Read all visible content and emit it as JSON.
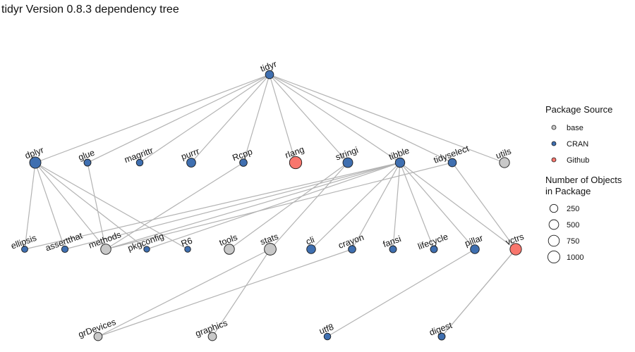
{
  "title": "tidyr Version 0.8.3 dependency tree",
  "colors": {
    "base": "#c8c8c8",
    "CRAN": "#3f6fb0",
    "Github": "#f8766d",
    "edge": "#b3b3b3"
  },
  "nodes": [
    {
      "id": "tidyr",
      "source": "CRAN",
      "size": 230
    },
    {
      "id": "dplyr",
      "source": "CRAN",
      "size": 700
    },
    {
      "id": "glue",
      "source": "CRAN",
      "size": 110
    },
    {
      "id": "magrittr",
      "source": "CRAN",
      "size": 90
    },
    {
      "id": "purrr",
      "source": "CRAN",
      "size": 320
    },
    {
      "id": "Rcpp",
      "source": "CRAN",
      "size": 150
    },
    {
      "id": "rlang",
      "source": "Github",
      "size": 900
    },
    {
      "id": "stringi",
      "source": "CRAN",
      "size": 440
    },
    {
      "id": "tibble",
      "source": "CRAN",
      "size": 390
    },
    {
      "id": "tidyselect",
      "source": "CRAN",
      "size": 230
    },
    {
      "id": "utils",
      "source": "base",
      "size": 480
    },
    {
      "id": "ellipsis",
      "source": "CRAN",
      "size": 60
    },
    {
      "id": "assertthat",
      "source": "CRAN",
      "size": 75
    },
    {
      "id": "methods",
      "source": "base",
      "size": 510
    },
    {
      "id": "pkgconfig",
      "source": "CRAN",
      "size": 40
    },
    {
      "id": "R6",
      "source": "CRAN",
      "size": 45
    },
    {
      "id": "tools",
      "source": "base",
      "size": 500
    },
    {
      "id": "stats",
      "source": "base",
      "size": 800
    },
    {
      "id": "cli",
      "source": "CRAN",
      "size": 300
    },
    {
      "id": "crayon",
      "source": "CRAN",
      "size": 150
    },
    {
      "id": "fansi",
      "source": "CRAN",
      "size": 110
    },
    {
      "id": "lifecycle",
      "source": "CRAN",
      "size": 110
    },
    {
      "id": "pillar",
      "source": "CRAN",
      "size": 300
    },
    {
      "id": "vctrs",
      "source": "Github",
      "size": 740
    },
    {
      "id": "grDevices",
      "source": "base",
      "size": 230
    },
    {
      "id": "graphics",
      "source": "base",
      "size": 230
    },
    {
      "id": "utf8",
      "source": "CRAN",
      "size": 90
    },
    {
      "id": "digest",
      "source": "CRAN",
      "size": 110
    }
  ],
  "edges": [
    [
      "tidyr",
      "dplyr"
    ],
    [
      "tidyr",
      "glue"
    ],
    [
      "tidyr",
      "magrittr"
    ],
    [
      "tidyr",
      "purrr"
    ],
    [
      "tidyr",
      "Rcpp"
    ],
    [
      "tidyr",
      "rlang"
    ],
    [
      "tidyr",
      "stringi"
    ],
    [
      "tidyr",
      "tibble"
    ],
    [
      "tidyr",
      "tidyselect"
    ],
    [
      "tidyr",
      "utils"
    ],
    [
      "dplyr",
      "ellipsis"
    ],
    [
      "dplyr",
      "assertthat"
    ],
    [
      "dplyr",
      "methods"
    ],
    [
      "dplyr",
      "R6"
    ],
    [
      "dplyr",
      "pkgconfig"
    ],
    [
      "glue",
      "methods"
    ],
    [
      "Rcpp",
      "methods"
    ],
    [
      "stringi",
      "tools"
    ],
    [
      "stringi",
      "stats"
    ],
    [
      "tibble",
      "ellipsis"
    ],
    [
      "tibble",
      "assertthat"
    ],
    [
      "tibble",
      "methods"
    ],
    [
      "tibble",
      "pkgconfig"
    ],
    [
      "tibble",
      "cli"
    ],
    [
      "tibble",
      "crayon"
    ],
    [
      "tibble",
      "fansi"
    ],
    [
      "tibble",
      "lifecycle"
    ],
    [
      "tibble",
      "pillar"
    ],
    [
      "tibble",
      "vctrs"
    ],
    [
      "tidyselect",
      "methods"
    ],
    [
      "tidyselect",
      "vctrs"
    ],
    [
      "stats",
      "grDevices"
    ],
    [
      "stats",
      "graphics"
    ],
    [
      "crayon",
      "grDevices"
    ],
    [
      "pillar",
      "utf8"
    ],
    [
      "vctrs",
      "digest"
    ],
    [
      "vctrs",
      "digest"
    ]
  ],
  "legend": {
    "source_title": "Package Source",
    "sources": [
      "base",
      "CRAN",
      "Github"
    ],
    "size_title_line1": "Number of Objects",
    "size_title_line2": "in Package",
    "sizes": [
      250,
      500,
      750,
      1000
    ]
  }
}
